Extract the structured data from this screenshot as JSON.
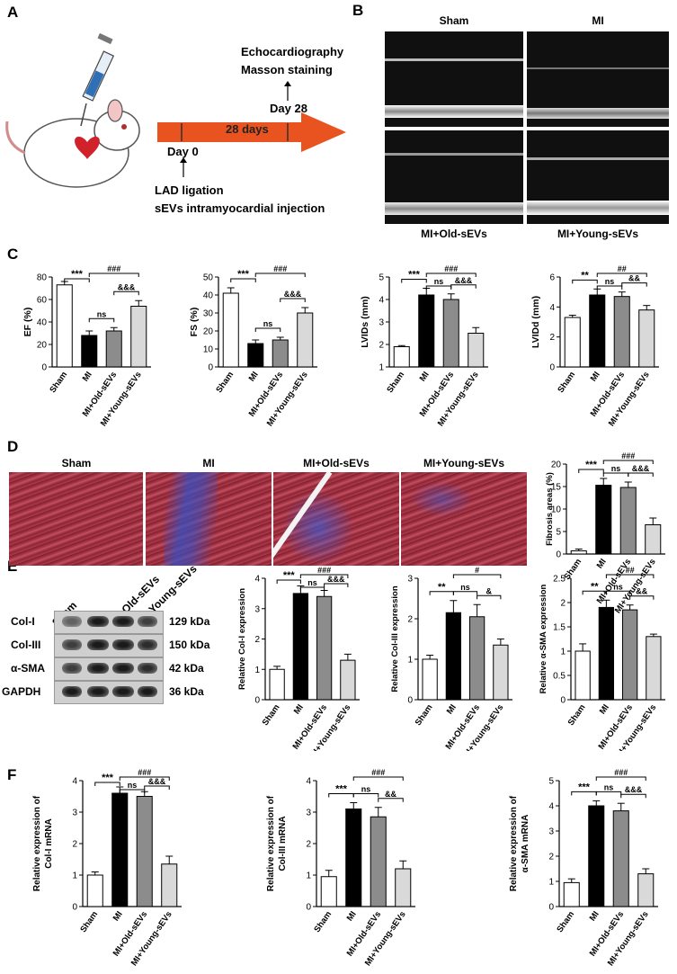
{
  "panels": {
    "A": "A",
    "B": "B",
    "C": "C",
    "D": "D",
    "E": "E",
    "F": "F"
  },
  "panelA": {
    "timeline_label": "28 days",
    "day0": "Day 0",
    "day28": "Day 28",
    "top_line1": "Echocardiography",
    "top_line2": "Masson staining",
    "bottom_line1": "LAD ligation",
    "bottom_line2": "sEVs intramyocardial injection",
    "arrow_color": "#e8531f"
  },
  "panelB": {
    "labels": [
      "Sham",
      "MI",
      "MI+Old-sEVs",
      "MI+Young-sEVs"
    ]
  },
  "panelD": {
    "labels": [
      "Sham",
      "MI",
      "MI+Old-sEVs",
      "MI+Young-sEVs"
    ]
  },
  "panelE": {
    "lanes": [
      "Sham",
      "MI",
      "MI+Old-sEVs",
      "MI+Young-sEVs"
    ],
    "proteins": [
      "Col-I",
      "Col-III",
      "α-SMA",
      "GAPDH"
    ],
    "sizes": [
      "129 kDa",
      "150 kDa",
      "42 kDa",
      "36 kDa"
    ]
  },
  "groups": [
    "Sham",
    "MI",
    "MI+Old-sEVs",
    "MI+Young-sEVs"
  ],
  "colors": [
    "#ffffff",
    "#000000",
    "#8c8c8c",
    "#d9d9d9"
  ],
  "chart_data": [
    {
      "id": "EF",
      "type": "bar",
      "ylabel": "EF (%)",
      "ylim": [
        0,
        80
      ],
      "yticks": [
        0,
        20,
        40,
        60,
        80
      ],
      "values": [
        73,
        28,
        32,
        54
      ],
      "errors": [
        3,
        4,
        3,
        5
      ],
      "sig": [
        {
          "a": 0,
          "b": 1,
          "text": "***"
        },
        {
          "a": 1,
          "b": 2,
          "text": "ns"
        },
        {
          "a": 2,
          "b": 3,
          "text": "&&&"
        },
        {
          "a": 1,
          "b": 3,
          "text": "###"
        }
      ]
    },
    {
      "id": "FS",
      "type": "bar",
      "ylabel": "FS (%)",
      "ylim": [
        0,
        50
      ],
      "yticks": [
        0,
        10,
        20,
        30,
        40,
        50
      ],
      "values": [
        41,
        13,
        15,
        30
      ],
      "errors": [
        3,
        2,
        1.5,
        3
      ],
      "sig": [
        {
          "a": 0,
          "b": 1,
          "text": "***"
        },
        {
          "a": 1,
          "b": 2,
          "text": "ns"
        },
        {
          "a": 2,
          "b": 3,
          "text": "&&&"
        },
        {
          "a": 1,
          "b": 3,
          "text": "###"
        }
      ]
    },
    {
      "id": "LVIDs",
      "type": "bar",
      "ylabel": "LVIDs (mm)",
      "ylim": [
        1,
        5
      ],
      "yticks": [
        1,
        2,
        3,
        4,
        5
      ],
      "values": [
        1.9,
        4.2,
        4.0,
        2.5
      ],
      "errors": [
        0.05,
        0.3,
        0.25,
        0.25
      ],
      "sig": [
        {
          "a": 0,
          "b": 1,
          "text": "***"
        },
        {
          "a": 1,
          "b": 2,
          "text": "ns"
        },
        {
          "a": 2,
          "b": 3,
          "text": "&&&"
        },
        {
          "a": 1,
          "b": 3,
          "text": "###"
        }
      ]
    },
    {
      "id": "LVIDd",
      "type": "bar",
      "ylabel": "LVIDd (mm)",
      "ylim": [
        0,
        6
      ],
      "yticks": [
        0,
        2,
        4,
        6
      ],
      "values": [
        3.3,
        4.8,
        4.7,
        3.8
      ],
      "errors": [
        0.15,
        0.4,
        0.3,
        0.3
      ],
      "sig": [
        {
          "a": 0,
          "b": 1,
          "text": "**"
        },
        {
          "a": 1,
          "b": 2,
          "text": "ns"
        },
        {
          "a": 2,
          "b": 3,
          "text": "&&"
        },
        {
          "a": 1,
          "b": 3,
          "text": "##"
        }
      ]
    },
    {
      "id": "Fibrosis",
      "type": "bar",
      "ylabel": "Fibrosis areas (%)",
      "ylim": [
        0,
        20
      ],
      "yticks": [
        0,
        5,
        10,
        15,
        20
      ],
      "values": [
        0.7,
        15.3,
        14.8,
        6.5
      ],
      "errors": [
        0.4,
        1.5,
        1.2,
        1.5
      ],
      "sig": [
        {
          "a": 0,
          "b": 1,
          "text": "***"
        },
        {
          "a": 1,
          "b": 2,
          "text": "ns"
        },
        {
          "a": 2,
          "b": 3,
          "text": "&&&"
        },
        {
          "a": 1,
          "b": 3,
          "text": "###"
        }
      ]
    },
    {
      "id": "ColI_prot",
      "type": "bar",
      "ylabel": "Relative Col-I expression",
      "ylim": [
        0,
        4
      ],
      "yticks": [
        0,
        1,
        2,
        3,
        4
      ],
      "values": [
        1.0,
        3.5,
        3.4,
        1.3
      ],
      "errors": [
        0.1,
        0.25,
        0.2,
        0.2
      ],
      "sig": [
        {
          "a": 0,
          "b": 1,
          "text": "***"
        },
        {
          "a": 1,
          "b": 2,
          "text": "ns"
        },
        {
          "a": 2,
          "b": 3,
          "text": "&&&"
        },
        {
          "a": 1,
          "b": 3,
          "text": "###"
        }
      ]
    },
    {
      "id": "ColIII_prot",
      "type": "bar",
      "ylabel": "Relative Col-III expression",
      "ylim": [
        0,
        3
      ],
      "yticks": [
        0,
        1,
        2,
        3
      ],
      "values": [
        1.0,
        2.15,
        2.05,
        1.35
      ],
      "errors": [
        0.1,
        0.3,
        0.3,
        0.15
      ],
      "sig": [
        {
          "a": 0,
          "b": 1,
          "text": "**"
        },
        {
          "a": 1,
          "b": 2,
          "text": "ns"
        },
        {
          "a": 2,
          "b": 3,
          "text": "&"
        },
        {
          "a": 1,
          "b": 3,
          "text": "#"
        }
      ]
    },
    {
      "id": "aSMA_prot",
      "type": "bar",
      "ylabel": "Relative α-SMA expression",
      "ylim": [
        0,
        2.5
      ],
      "yticks": [
        0,
        0.5,
        1.0,
        1.5,
        2.0,
        2.5
      ],
      "values": [
        1.0,
        1.9,
        1.85,
        1.3
      ],
      "errors": [
        0.15,
        0.15,
        0.1,
        0.05
      ],
      "sig": [
        {
          "a": 0,
          "b": 1,
          "text": "**"
        },
        {
          "a": 1,
          "b": 2,
          "text": "ns"
        },
        {
          "a": 2,
          "b": 3,
          "text": "&&"
        },
        {
          "a": 1,
          "b": 3,
          "text": "##"
        }
      ]
    },
    {
      "id": "ColI_mRNA",
      "type": "bar",
      "ylabel": "Relative expression of",
      "ylabel2": "Col-I mRNA",
      "ylim": [
        0,
        4
      ],
      "yticks": [
        0,
        1,
        2,
        3,
        4
      ],
      "values": [
        1.0,
        3.6,
        3.5,
        1.35
      ],
      "errors": [
        0.1,
        0.2,
        0.15,
        0.25
      ],
      "sig": [
        {
          "a": 0,
          "b": 1,
          "text": "***"
        },
        {
          "a": 1,
          "b": 2,
          "text": "ns"
        },
        {
          "a": 2,
          "b": 3,
          "text": "&&&"
        },
        {
          "a": 1,
          "b": 3,
          "text": "###"
        }
      ]
    },
    {
      "id": "ColIII_mRNA",
      "type": "bar",
      "ylabel": "Relative expression of",
      "ylabel2": "Col-III mRNA",
      "ylim": [
        0,
        4
      ],
      "yticks": [
        0,
        1,
        2,
        3,
        4
      ],
      "values": [
        0.95,
        3.1,
        2.85,
        1.2
      ],
      "errors": [
        0.2,
        0.2,
        0.3,
        0.25
      ],
      "sig": [
        {
          "a": 0,
          "b": 1,
          "text": "***"
        },
        {
          "a": 1,
          "b": 2,
          "text": "ns"
        },
        {
          "a": 2,
          "b": 3,
          "text": "&&"
        },
        {
          "a": 1,
          "b": 3,
          "text": "###"
        }
      ]
    },
    {
      "id": "aSMA_mRNA",
      "type": "bar",
      "ylabel": "Relative expression of",
      "ylabel2": "α-SMA mRNA",
      "ylim": [
        0,
        5
      ],
      "yticks": [
        0,
        1,
        2,
        3,
        4,
        5
      ],
      "values": [
        0.95,
        4.0,
        3.8,
        1.3
      ],
      "errors": [
        0.15,
        0.2,
        0.3,
        0.2
      ],
      "sig": [
        {
          "a": 0,
          "b": 1,
          "text": "***"
        },
        {
          "a": 1,
          "b": 2,
          "text": "ns"
        },
        {
          "a": 2,
          "b": 3,
          "text": "&&&"
        },
        {
          "a": 1,
          "b": 3,
          "text": "###"
        }
      ]
    }
  ]
}
